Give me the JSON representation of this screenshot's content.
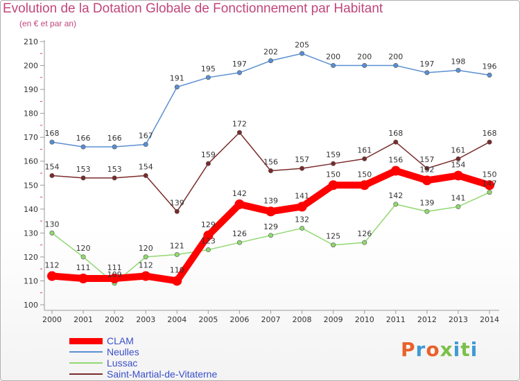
{
  "header": {
    "title": "Evolution de la Dotation Globale de Fonctionnement par Habitant",
    "subtitle": "(en € et par an)"
  },
  "logo": {
    "text": "Proxiti",
    "colors": [
      "#e8622a",
      "#3e9ad6",
      "#e8622a",
      "#7ac04a",
      "#3e9ad6",
      "#7ac04a",
      "#3e9ad6"
    ]
  },
  "chart_data": {
    "type": "line",
    "x": [
      "2000",
      "2001",
      "2002",
      "2003",
      "2004",
      "2005",
      "2006",
      "2007",
      "2008",
      "2009",
      "2010",
      "2011",
      "2012",
      "2013",
      "2014"
    ],
    "ylim": [
      100,
      210
    ],
    "yticks": [
      100,
      110,
      120,
      130,
      140,
      150,
      160,
      170,
      180,
      190,
      200,
      210
    ],
    "grid": false,
    "legend_position": "bottom-left",
    "series": [
      {
        "name": "CLAM",
        "color": "#ff0000",
        "values": [
          112,
          111,
          111,
          112,
          110,
          129,
          142,
          139,
          141,
          150,
          150,
          156,
          152,
          154,
          150
        ]
      },
      {
        "name": "Neulles",
        "color": "#5a8fd2",
        "values": [
          168,
          166,
          166,
          167,
          191,
          195,
          197,
          202,
          205,
          200,
          200,
          200,
          197,
          198,
          196
        ]
      },
      {
        "name": "Lussac",
        "color": "#90d870",
        "values": [
          130,
          120,
          109,
          120,
          121,
          123,
          126,
          129,
          132,
          125,
          126,
          142,
          139,
          141,
          147
        ]
      },
      {
        "name": "Saint-Martial-de-Vitaterne",
        "color": "#7a2a2a",
        "values": [
          154,
          153,
          153,
          154,
          139,
          159,
          172,
          156,
          157,
          159,
          161,
          168,
          157,
          161,
          168
        ]
      }
    ]
  }
}
